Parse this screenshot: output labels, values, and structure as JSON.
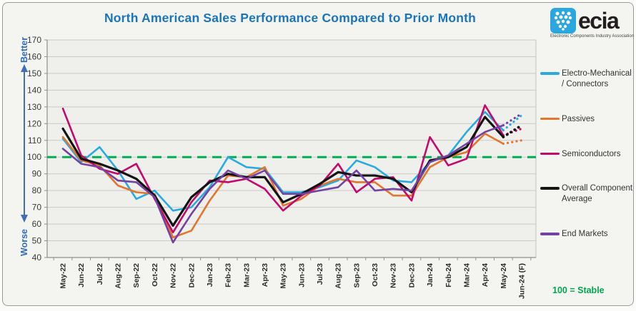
{
  "title": "North American Sales Performance Compared to Prior Month",
  "logo": {
    "text": "ecia",
    "caption": "Electronic Components Industry Association"
  },
  "axis": {
    "better_label": "Better",
    "worse_label": "Worse",
    "y_ticks": [
      170,
      160,
      150,
      140,
      130,
      120,
      110,
      100,
      90,
      80,
      70,
      60,
      50,
      40
    ],
    "note": "100 = Stable"
  },
  "chart_data": {
    "type": "line",
    "title": "North American Sales Performance Compared to Prior Month",
    "categories": [
      "May-22",
      "Jun-22",
      "Jul-22",
      "Aug-22",
      "Sep-22",
      "Oct-22",
      "Nov-22",
      "Dec-22",
      "Jan-23",
      "Feb-23",
      "Mar-23",
      "Apr-23",
      "May-23",
      "Jun-23",
      "Jul-23",
      "Aug-23",
      "Sep-23",
      "Oct-23",
      "Nov-23",
      "Dec-23",
      "Jan-24",
      "Feb-24",
      "Mar-24",
      "Apr-24",
      "May-24",
      "Jun-24 (F)"
    ],
    "series": [
      {
        "name": "Electro-Mechanical / Connectors",
        "color": "#29abe2",
        "values": [
          111,
          97,
          106,
          92,
          75,
          80,
          68,
          70,
          82,
          100,
          94,
          93,
          79,
          79,
          82,
          86,
          98,
          94,
          86,
          85,
          97,
          101,
          115,
          127,
          116,
          125
        ]
      },
      {
        "name": "Passives",
        "color": "#e1762c",
        "values": [
          112,
          98,
          95,
          83,
          79,
          78,
          52,
          56,
          74,
          89,
          88,
          94,
          71,
          75,
          83,
          87,
          85,
          85,
          77,
          77,
          94,
          100,
          103,
          114,
          108,
          110
        ]
      },
      {
        "name": "Semiconductors",
        "color": "#c30a6c",
        "values": [
          129,
          101,
          93,
          90,
          96,
          75,
          55,
          73,
          86,
          85,
          87,
          81,
          68,
          77,
          83,
          96,
          79,
          87,
          88,
          74,
          112,
          95,
          99,
          131,
          113,
          117
        ]
      },
      {
        "name": "Overall Component Average",
        "color": "#141414",
        "values": [
          117,
          99,
          96,
          92,
          87,
          77,
          59,
          76,
          85,
          90,
          88,
          88,
          73,
          78,
          84,
          91,
          89,
          89,
          87,
          79,
          98,
          100,
          106,
          124,
          112,
          119
        ]
      },
      {
        "name": "End Markets",
        "color": "#7442a3",
        "values": [
          105,
          96,
          94,
          86,
          85,
          76,
          49,
          66,
          81,
          92,
          87,
          92,
          78,
          78,
          80,
          82,
          92,
          80,
          81,
          80,
          97,
          101,
          108,
          115,
          119,
          126
        ]
      }
    ],
    "ylim": [
      40,
      170
    ],
    "baseline": 100,
    "baseline_color": "#00b050",
    "forecast_from_index": 24,
    "grid": true,
    "legend_position": "right"
  }
}
